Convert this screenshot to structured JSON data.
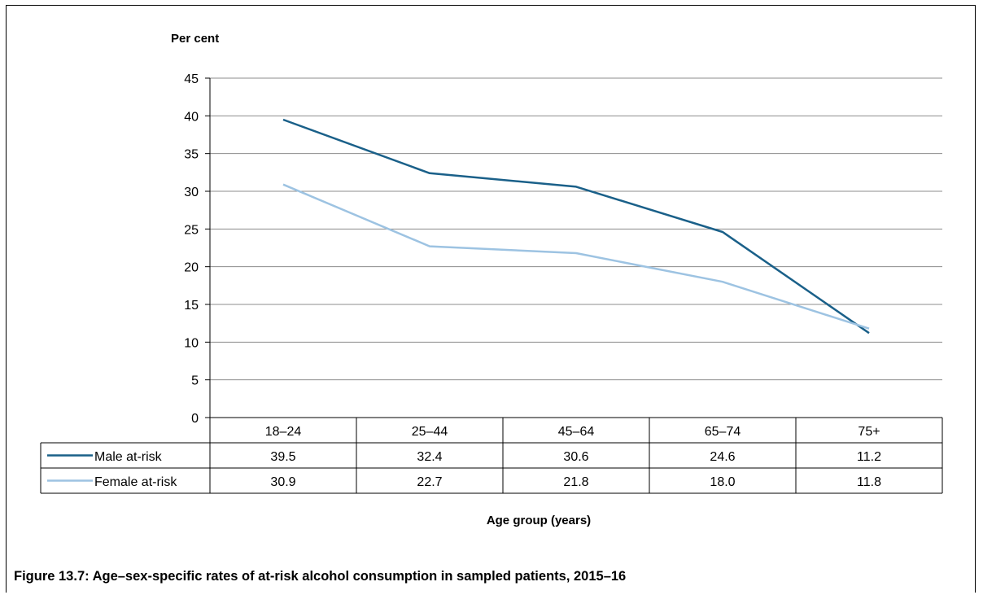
{
  "chart_data": {
    "type": "line",
    "ylabel": "Per cent",
    "xlabel": "Age group (years)",
    "ylim": [
      0,
      45
    ],
    "yticks": [
      "0",
      "5",
      "10",
      "15",
      "20",
      "25",
      "30",
      "35",
      "40",
      "45"
    ],
    "categories": [
      "18–24",
      "25–44",
      "45–64",
      "65–74",
      "75+"
    ],
    "grid": true,
    "legend": "data-table",
    "series": [
      {
        "name": "Male at-risk",
        "color": "#1a6089",
        "values": [
          39.5,
          32.4,
          30.6,
          24.6,
          11.2
        ],
        "labels": [
          "39.5",
          "32.4",
          "30.6",
          "24.6",
          "11.2"
        ]
      },
      {
        "name": "Female at-risk",
        "color": "#9dc3e2",
        "values": [
          30.9,
          22.7,
          21.8,
          18.0,
          11.8
        ],
        "labels": [
          "30.9",
          "22.7",
          "21.8",
          "18.0",
          "11.8"
        ]
      }
    ]
  },
  "caption": "Figure 13.7: Age–sex-specific rates of at-risk alcohol consumption in sampled patients, 2015–16"
}
